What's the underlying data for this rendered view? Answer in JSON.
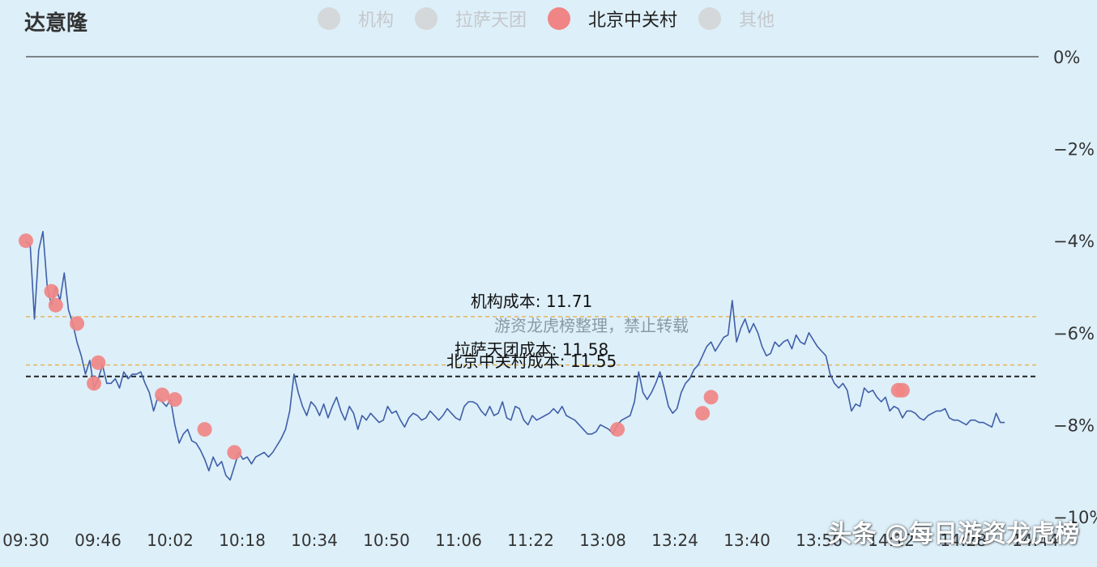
{
  "chart_data": {
    "type": "line",
    "title": "达意隆",
    "legend": [
      {
        "name": "机构",
        "color": "#d4d8da",
        "active": false
      },
      {
        "name": "拉萨天团",
        "color": "#d4d8da",
        "active": false
      },
      {
        "name": "北京中关村",
        "color": "#f08585",
        "active": true
      },
      {
        "name": "其他",
        "color": "#d4d8da",
        "active": false
      }
    ],
    "ylim": [
      -10,
      0
    ],
    "y_ticks": [
      0,
      -2,
      -4,
      -6,
      -8,
      -10
    ],
    "y_tick_labels": [
      "0%",
      "−2%",
      "−4%",
      "−6%",
      "−8%",
      "−10%"
    ],
    "x_tick_labels": [
      "09:30",
      "09:46",
      "10:02",
      "10:18",
      "10:34",
      "10:50",
      "11:06",
      "11:22",
      "13:08",
      "13:24",
      "13:40",
      "13:56",
      "14:12",
      "14:28",
      "14:44"
    ],
    "x_range": [
      0,
      238
    ],
    "series": [
      {
        "color": "#3f5fa8",
        "values": [
          [
            0,
            -4.0
          ],
          [
            1,
            -4.1
          ],
          [
            2,
            -5.7
          ],
          [
            3,
            -4.2
          ],
          [
            4,
            -3.8
          ],
          [
            5,
            -5.0
          ],
          [
            6,
            -5.4
          ],
          [
            7,
            -5.0
          ],
          [
            8,
            -5.3
          ],
          [
            9,
            -4.7
          ],
          [
            10,
            -5.5
          ],
          [
            11,
            -5.8
          ],
          [
            12,
            -6.2
          ],
          [
            13,
            -6.5
          ],
          [
            14,
            -6.9
          ],
          [
            15,
            -6.6
          ],
          [
            16,
            -7.2
          ],
          [
            17,
            -7.0
          ],
          [
            18,
            -6.7
          ],
          [
            19,
            -7.1
          ],
          [
            20,
            -7.1
          ],
          [
            21,
            -7.0
          ],
          [
            22,
            -7.2
          ],
          [
            23,
            -6.85
          ],
          [
            24,
            -7.0
          ],
          [
            25,
            -6.9
          ],
          [
            26,
            -6.9
          ],
          [
            27,
            -6.85
          ],
          [
            28,
            -7.1
          ],
          [
            29,
            -7.3
          ],
          [
            30,
            -7.7
          ],
          [
            31,
            -7.4
          ],
          [
            32,
            -7.5
          ],
          [
            33,
            -7.6
          ],
          [
            34,
            -7.45
          ],
          [
            35,
            -8.0
          ],
          [
            36,
            -8.4
          ],
          [
            37,
            -8.2
          ],
          [
            38,
            -8.1
          ],
          [
            39,
            -8.35
          ],
          [
            40,
            -8.4
          ],
          [
            41,
            -8.55
          ],
          [
            42,
            -8.75
          ],
          [
            43,
            -9.0
          ],
          [
            44,
            -8.7
          ],
          [
            45,
            -8.9
          ],
          [
            46,
            -8.8
          ],
          [
            47,
            -9.1
          ],
          [
            48,
            -9.2
          ],
          [
            49,
            -8.9
          ],
          [
            50,
            -8.6
          ],
          [
            51,
            -8.75
          ],
          [
            52,
            -8.7
          ],
          [
            53,
            -8.85
          ],
          [
            54,
            -8.7
          ],
          [
            55,
            -8.65
          ],
          [
            56,
            -8.6
          ],
          [
            57,
            -8.7
          ],
          [
            58,
            -8.6
          ],
          [
            59,
            -8.45
          ],
          [
            60,
            -8.3
          ],
          [
            61,
            -8.1
          ],
          [
            62,
            -7.7
          ],
          [
            63,
            -6.9
          ],
          [
            64,
            -7.3
          ],
          [
            65,
            -7.6
          ],
          [
            66,
            -7.8
          ],
          [
            67,
            -7.5
          ],
          [
            68,
            -7.6
          ],
          [
            69,
            -7.8
          ],
          [
            70,
            -7.55
          ],
          [
            71,
            -7.85
          ],
          [
            72,
            -7.6
          ],
          [
            73,
            -7.4
          ],
          [
            74,
            -7.7
          ],
          [
            75,
            -7.9
          ],
          [
            76,
            -7.6
          ],
          [
            77,
            -7.75
          ],
          [
            78,
            -8.1
          ],
          [
            79,
            -7.8
          ],
          [
            80,
            -7.9
          ],
          [
            81,
            -7.75
          ],
          [
            82,
            -7.85
          ],
          [
            83,
            -7.95
          ],
          [
            84,
            -7.9
          ],
          [
            85,
            -7.6
          ],
          [
            86,
            -7.75
          ],
          [
            87,
            -7.7
          ],
          [
            88,
            -7.9
          ],
          [
            89,
            -8.05
          ],
          [
            90,
            -7.85
          ],
          [
            91,
            -7.75
          ],
          [
            92,
            -7.8
          ],
          [
            93,
            -7.9
          ],
          [
            94,
            -7.85
          ],
          [
            95,
            -7.7
          ],
          [
            96,
            -7.8
          ],
          [
            97,
            -7.9
          ],
          [
            98,
            -7.8
          ],
          [
            99,
            -7.65
          ],
          [
            100,
            -7.75
          ],
          [
            101,
            -7.85
          ],
          [
            102,
            -7.9
          ],
          [
            103,
            -7.6
          ],
          [
            104,
            -7.5
          ],
          [
            105,
            -7.5
          ],
          [
            106,
            -7.55
          ],
          [
            107,
            -7.7
          ],
          [
            108,
            -7.8
          ],
          [
            109,
            -7.6
          ],
          [
            110,
            -7.8
          ],
          [
            111,
            -7.75
          ],
          [
            112,
            -7.5
          ],
          [
            113,
            -7.85
          ],
          [
            114,
            -7.9
          ],
          [
            115,
            -7.6
          ],
          [
            116,
            -7.65
          ],
          [
            117,
            -7.9
          ],
          [
            118,
            -8.0
          ],
          [
            119,
            -7.8
          ],
          [
            120,
            -7.9
          ],
          [
            121,
            -7.85
          ],
          [
            122,
            -7.8
          ],
          [
            123,
            -7.75
          ],
          [
            124,
            -7.65
          ],
          [
            125,
            -7.75
          ],
          [
            126,
            -7.6
          ],
          [
            127,
            -7.8
          ],
          [
            128,
            -7.85
          ],
          [
            129,
            -7.9
          ],
          [
            130,
            -8.0
          ],
          [
            131,
            -8.1
          ],
          [
            132,
            -8.2
          ],
          [
            133,
            -8.2
          ],
          [
            134,
            -8.15
          ],
          [
            135,
            -8.0
          ],
          [
            136,
            -8.05
          ],
          [
            137,
            -8.1
          ],
          [
            138,
            -8.2
          ],
          [
            139,
            -8.0
          ],
          [
            140,
            -7.9
          ],
          [
            141,
            -7.85
          ],
          [
            142,
            -7.8
          ],
          [
            143,
            -7.5
          ],
          [
            144,
            -6.85
          ],
          [
            145,
            -7.3
          ],
          [
            146,
            -7.45
          ],
          [
            147,
            -7.3
          ],
          [
            148,
            -7.1
          ],
          [
            149,
            -6.85
          ],
          [
            150,
            -7.2
          ],
          [
            151,
            -7.6
          ],
          [
            152,
            -7.75
          ],
          [
            153,
            -7.65
          ],
          [
            154,
            -7.3
          ],
          [
            155,
            -7.1
          ],
          [
            156,
            -7.0
          ],
          [
            157,
            -6.8
          ],
          [
            158,
            -6.7
          ],
          [
            159,
            -6.5
          ],
          [
            160,
            -6.3
          ],
          [
            161,
            -6.2
          ],
          [
            162,
            -6.4
          ],
          [
            163,
            -6.25
          ],
          [
            164,
            -6.1
          ],
          [
            165,
            -6.05
          ],
          [
            166,
            -5.3
          ],
          [
            167,
            -6.2
          ],
          [
            168,
            -5.9
          ],
          [
            169,
            -5.7
          ],
          [
            170,
            -6.0
          ],
          [
            171,
            -5.8
          ],
          [
            172,
            -6.0
          ],
          [
            173,
            -6.3
          ],
          [
            174,
            -6.5
          ],
          [
            175,
            -6.45
          ],
          [
            176,
            -6.2
          ],
          [
            177,
            -6.3
          ],
          [
            178,
            -6.2
          ],
          [
            179,
            -6.15
          ],
          [
            180,
            -6.35
          ],
          [
            181,
            -6.05
          ],
          [
            182,
            -6.2
          ],
          [
            183,
            -6.25
          ],
          [
            184,
            -6.0
          ],
          [
            185,
            -6.15
          ],
          [
            186,
            -6.3
          ],
          [
            187,
            -6.4
          ],
          [
            188,
            -6.5
          ],
          [
            189,
            -6.9
          ],
          [
            190,
            -7.1
          ],
          [
            191,
            -7.2
          ],
          [
            192,
            -7.1
          ],
          [
            193,
            -7.25
          ],
          [
            194,
            -7.7
          ],
          [
            195,
            -7.55
          ],
          [
            196,
            -7.6
          ],
          [
            197,
            -7.2
          ],
          [
            198,
            -7.3
          ],
          [
            199,
            -7.25
          ],
          [
            200,
            -7.4
          ],
          [
            201,
            -7.5
          ],
          [
            202,
            -7.4
          ],
          [
            203,
            -7.7
          ],
          [
            204,
            -7.6
          ],
          [
            205,
            -7.65
          ],
          [
            206,
            -7.85
          ],
          [
            207,
            -7.7
          ],
          [
            208,
            -7.7
          ],
          [
            209,
            -7.75
          ],
          [
            210,
            -7.85
          ],
          [
            211,
            -7.9
          ],
          [
            212,
            -7.8
          ],
          [
            213,
            -7.75
          ],
          [
            214,
            -7.7
          ],
          [
            215,
            -7.7
          ],
          [
            216,
            -7.65
          ],
          [
            217,
            -7.85
          ],
          [
            218,
            -7.9
          ],
          [
            219,
            -7.9
          ],
          [
            220,
            -7.95
          ],
          [
            221,
            -8.0
          ],
          [
            222,
            -7.9
          ],
          [
            223,
            -7.9
          ],
          [
            224,
            -7.95
          ],
          [
            225,
            -7.95
          ],
          [
            226,
            -8.0
          ],
          [
            227,
            -8.05
          ],
          [
            228,
            -7.75
          ],
          [
            229,
            -7.95
          ],
          [
            230,
            -7.95
          ]
        ]
      }
    ],
    "markers": {
      "series": "北京中关村",
      "color": "#f08585",
      "points": [
        [
          0,
          -4.0
        ],
        [
          6,
          -5.1
        ],
        [
          7,
          -5.4
        ],
        [
          12,
          -5.8
        ],
        [
          16,
          -7.1
        ],
        [
          17,
          -6.65
        ],
        [
          32,
          -7.35
        ],
        [
          35,
          -7.45
        ],
        [
          42,
          -8.1
        ],
        [
          49,
          -8.6
        ],
        [
          139,
          -8.1
        ],
        [
          159,
          -7.75
        ],
        [
          161,
          -7.4
        ],
        [
          205,
          -7.25
        ],
        [
          206,
          -7.25
        ]
      ]
    },
    "reference_lines": [
      {
        "label": "机构成本: 11.71",
        "y": -5.65,
        "color": "#e6b04a",
        "style": "dashed"
      },
      {
        "label": "拉萨天团成本: 11.58",
        "y": -6.7,
        "color": "#e6b04a",
        "style": "dashed"
      },
      {
        "label": "北京中关村成本: 11.55",
        "y": -6.95,
        "color": "#222222",
        "style": "dashed"
      }
    ],
    "grid": false,
    "legend_position": "top-center"
  },
  "watermark_mid": "游资龙虎榜整理，禁止转载",
  "watermark_corner": "头条 @每日游资龙虎榜"
}
